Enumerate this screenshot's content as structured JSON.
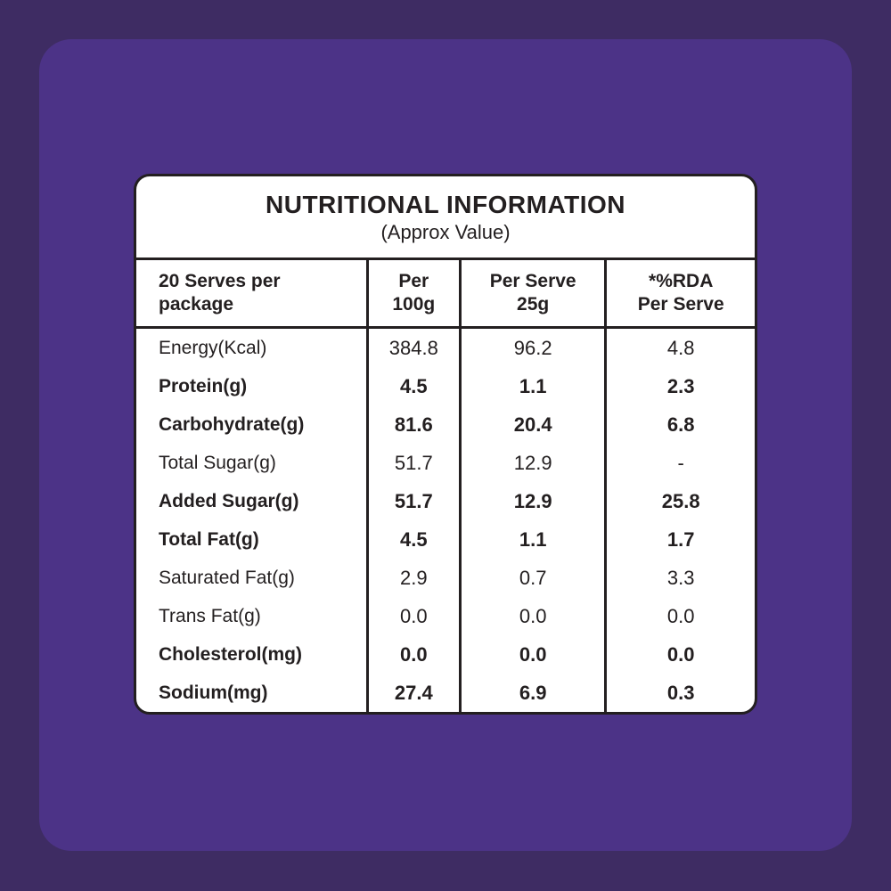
{
  "colors": {
    "outer_bg": "#3E2C63",
    "inner_bg": "#4C3387",
    "card_bg": "#FFFFFF",
    "line": "#231F20",
    "text": "#231F20"
  },
  "card": {
    "title": "NUTRITIONAL INFORMATION",
    "subtitle": "(Approx Value)",
    "header": {
      "serves": "20 Serves per\npackage",
      "per_100g": "Per\n100g",
      "per_serve": "Per Serve\n25g",
      "rda": "*%RDA\nPer Serve"
    },
    "rows": [
      {
        "label": "Energy(Kcal)",
        "per_100g": "384.8",
        "per_serve": "96.2",
        "rda_per_serve": "4.8",
        "bold": false
      },
      {
        "label": "Protein(g)",
        "per_100g": "4.5",
        "per_serve": "1.1",
        "rda_per_serve": "2.3",
        "bold": true
      },
      {
        "label": "Carbohydrate(g)",
        "per_100g": "81.6",
        "per_serve": "20.4",
        "rda_per_serve": "6.8",
        "bold": true
      },
      {
        "label": "Total Sugar(g)",
        "per_100g": "51.7",
        "per_serve": "12.9",
        "rda_per_serve": "-",
        "bold": false
      },
      {
        "label": "Added Sugar(g)",
        "per_100g": "51.7",
        "per_serve": "12.9",
        "rda_per_serve": "25.8",
        "bold": true
      },
      {
        "label": "Total Fat(g)",
        "per_100g": "4.5",
        "per_serve": "1.1",
        "rda_per_serve": "1.7",
        "bold": true
      },
      {
        "label": "Saturated Fat(g)",
        "per_100g": "2.9",
        "per_serve": "0.7",
        "rda_per_serve": "3.3",
        "bold": false
      },
      {
        "label": "Trans Fat(g)",
        "per_100g": "0.0",
        "per_serve": "0.0",
        "rda_per_serve": "0.0",
        "bold": false
      },
      {
        "label": "Cholesterol(mg)",
        "per_100g": "0.0",
        "per_serve": "0.0",
        "rda_per_serve": "0.0",
        "bold": true
      },
      {
        "label": "Sodium(mg)",
        "per_100g": "27.4",
        "per_serve": "6.9",
        "rda_per_serve": "0.3",
        "bold": true
      }
    ]
  }
}
